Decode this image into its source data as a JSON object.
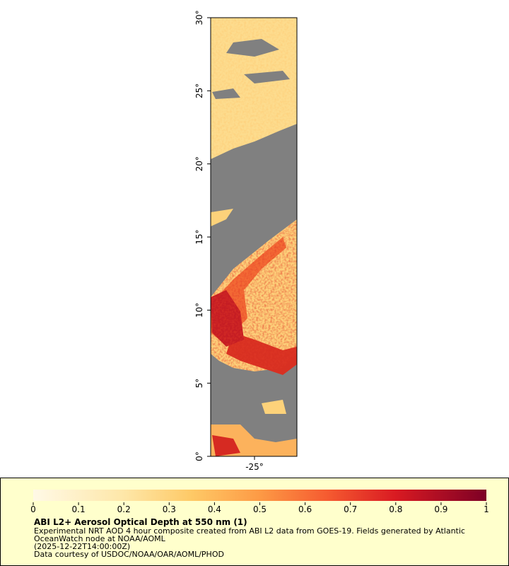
{
  "map": {
    "lat_lim": [
      0,
      30
    ],
    "lat_ticks": [
      {
        "value": 0,
        "label": "0°"
      },
      {
        "value": 5,
        "label": "5°"
      },
      {
        "value": 10,
        "label": "10°"
      },
      {
        "value": 15,
        "label": "15°"
      },
      {
        "value": 20,
        "label": "20°"
      },
      {
        "value": 25,
        "label": "25°"
      },
      {
        "value": 30,
        "label": "30°"
      }
    ],
    "lon_ticks": [
      "-25°"
    ]
  },
  "legend": {
    "title": "ABI L2+ Aerosol Optical Depth at 550 nm (1)",
    "lines": [
      "Experimental NRT AOD 4 hour composite created from ABI L2 data from GOES-19. Fields generated by Atlantic",
      "OceanWatch node at NOAA/AOML",
      "(2025-12-22T14:00:00Z)",
      "Data courtesy of USDOC/NOAA/OAR/AOML/PHOD"
    ],
    "colorbar_lim": [
      0,
      1
    ],
    "colorbar_ticks": [
      0,
      0.1,
      0.2,
      0.3,
      0.4,
      0.5,
      0.6,
      0.7,
      0.8,
      0.9,
      1
    ]
  }
}
